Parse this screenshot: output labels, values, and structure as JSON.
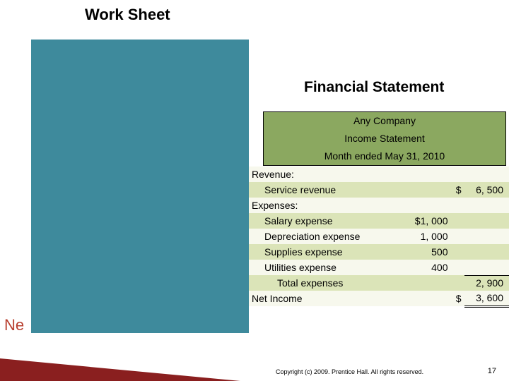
{
  "slide": {
    "title": "Work Sheet",
    "section_heading": "Financial Statement",
    "cutoff_text": "Ne",
    "copyright": "Copyright (c) 2009. Prentice Hall. All rights reserved.",
    "page_number": "17"
  },
  "colors": {
    "teal_block": "#3e8a9c",
    "header_bg": "#8ba860",
    "row_light": "#f7f8ed",
    "row_dark": "#dbe4b8",
    "triangle": "#8a1f1f",
    "cutoff_color": "#b84030"
  },
  "header": {
    "company": "Any Company",
    "statement": "Income Statement",
    "period": "Month ended May 31, 2010"
  },
  "statement": {
    "revenue_label": "Revenue:",
    "service_revenue_label": "Service revenue",
    "service_revenue_sym": "$",
    "service_revenue_amt": "6, 500",
    "expenses_label": "Expenses:",
    "salary_label": "Salary expense",
    "salary_amt": "$1, 000",
    "depreciation_label": "Depreciation expense",
    "depreciation_amt": "1, 000",
    "supplies_label": "Supplies expense",
    "supplies_amt": "500",
    "utilities_label": "Utilities expense",
    "utilities_amt": "400",
    "total_expenses_label": "Total expenses",
    "total_expenses_amt": "2, 900",
    "net_income_label": "Net Income",
    "net_income_sym": "$",
    "net_income_amt": "3, 600"
  }
}
